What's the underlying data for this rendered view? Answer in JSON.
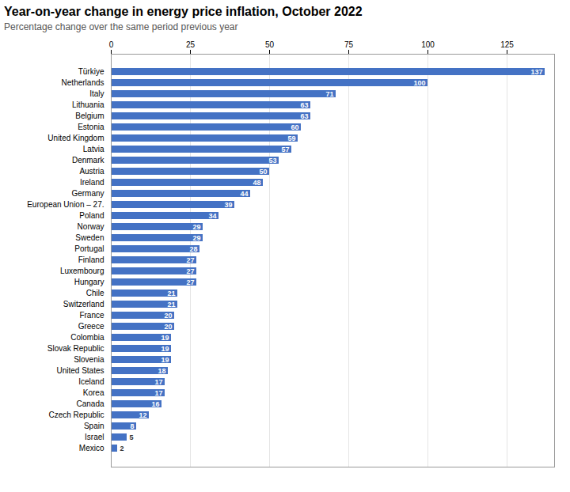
{
  "chart_data": {
    "type": "bar",
    "orientation": "horizontal",
    "title": "Year-on-year change in energy price inflation, October 2022",
    "subtitle": "Percentage change over the same period previous year",
    "categories": [
      "Türkiye",
      "Netherlands",
      "Italy",
      "Lithuania",
      "Belgium",
      "Estonia",
      "United Kingdom",
      "Latvia",
      "Denmark",
      "Austria",
      "Ireland",
      "Germany",
      "European Union – 27.",
      "Poland",
      "Norway",
      "Sweden",
      "Portugal",
      "Finland",
      "Luxembourg",
      "Hungary",
      "Chile",
      "Switzerland",
      "France",
      "Greece",
      "Colombia",
      "Slovak Republic",
      "Slovenia",
      "United States",
      "Iceland",
      "Korea",
      "Canada",
      "Czech Republic",
      "Spain",
      "Israel",
      "Mexico"
    ],
    "values": [
      137,
      100,
      71,
      63,
      63,
      60,
      59,
      57,
      53,
      50,
      48,
      44,
      39,
      34,
      29,
      29,
      28,
      27,
      27,
      27,
      21,
      21,
      20,
      20,
      19,
      19,
      19,
      18,
      17,
      17,
      16,
      12,
      8,
      5,
      2
    ],
    "color": "#4472C4",
    "xlim": [
      0,
      140
    ],
    "xticks": [
      0,
      25,
      50,
      75,
      100,
      125
    ],
    "grid": true,
    "data_labels": true
  }
}
